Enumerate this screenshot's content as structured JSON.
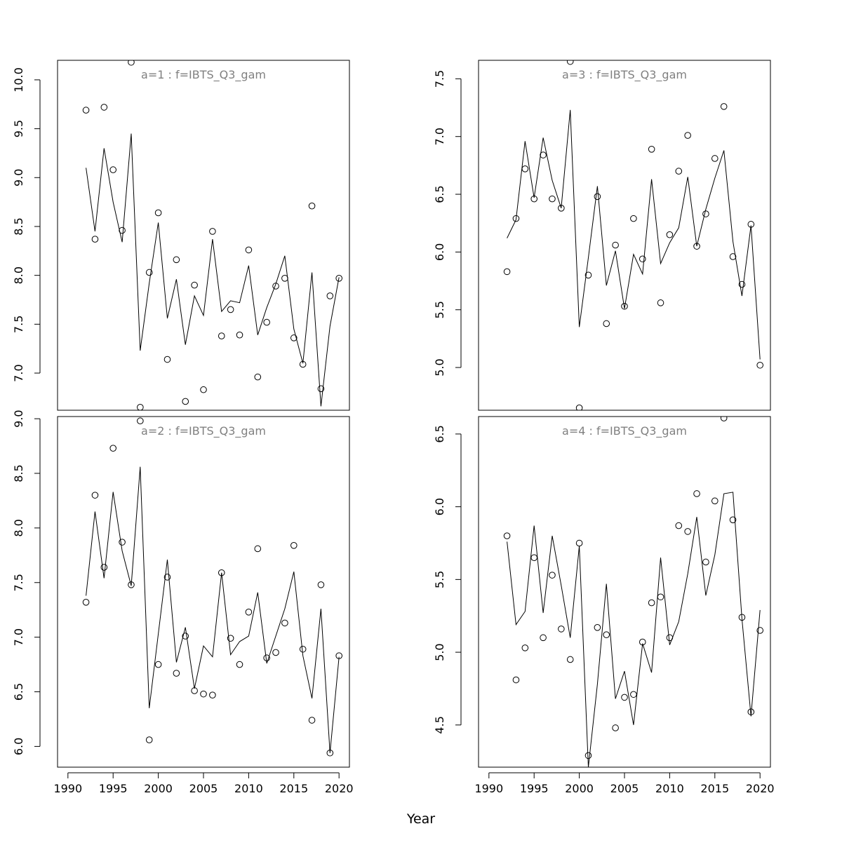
{
  "chart_data": {
    "type": "line",
    "xlabel": "Year",
    "x_ticks": [
      1990,
      1995,
      2000,
      2005,
      2010,
      2015,
      2020
    ],
    "x": [
      1992,
      1993,
      1994,
      1995,
      1996,
      1997,
      1998,
      1999,
      2000,
      2001,
      2002,
      2003,
      2004,
      2005,
      2006,
      2007,
      2008,
      2009,
      2010,
      2011,
      2012,
      2013,
      2014,
      2015,
      2016,
      2017,
      2018,
      2019,
      2020
    ],
    "panels": [
      {
        "title": "a=1  :  f=IBTS_Q3_gam",
        "ylim": [
          6.62,
          10.2
        ],
        "y_ticks": [
          7.0,
          7.5,
          8.0,
          8.5,
          9.0,
          9.5,
          10.0
        ],
        "series": [
          {
            "type": "points",
            "values": [
              9.69,
              8.37,
              9.72,
              9.08,
              8.46,
              10.18,
              6.65,
              8.03,
              8.64,
              7.14,
              8.16,
              6.71,
              7.9,
              6.83,
              8.45,
              7.38,
              7.65,
              7.39,
              8.26,
              6.96,
              7.52,
              7.89,
              7.97,
              7.36,
              7.09,
              8.71,
              6.84,
              7.79,
              7.97
            ]
          },
          {
            "type": "line",
            "values": [
              9.1,
              8.45,
              9.3,
              8.75,
              8.34,
              9.45,
              7.23,
              7.92,
              8.54,
              7.56,
              7.96,
              7.29,
              7.79,
              7.59,
              8.37,
              7.63,
              7.74,
              7.72,
              8.1,
              7.39,
              7.67,
              7.91,
              8.2,
              7.45,
              7.1,
              8.03,
              6.66,
              7.48,
              7.98
            ]
          }
        ]
      },
      {
        "title": "a=3  :  f=IBTS_Q3_gam",
        "ylim": [
          4.63,
          7.66
        ],
        "y_ticks": [
          5.0,
          5.5,
          6.0,
          6.5,
          7.0,
          7.5
        ],
        "series": [
          {
            "type": "points",
            "values": [
              5.83,
              6.29,
              6.72,
              6.46,
              6.84,
              6.46,
              6.38,
              7.65,
              4.65,
              5.8,
              6.48,
              5.38,
              6.06,
              5.53,
              6.29,
              5.94,
              6.89,
              5.56,
              6.15,
              6.7,
              7.01,
              6.05,
              6.33,
              6.81,
              7.26,
              5.96,
              5.72,
              6.24,
              5.02
            ]
          },
          {
            "type": "line",
            "values": [
              6.12,
              6.28,
              6.96,
              6.47,
              6.99,
              6.62,
              6.38,
              7.23,
              5.35,
              5.95,
              6.57,
              5.71,
              6.01,
              5.51,
              5.98,
              5.81,
              6.63,
              5.9,
              6.08,
              6.21,
              6.65,
              6.05,
              6.37,
              6.64,
              6.88,
              6.09,
              5.62,
              6.23,
              5.07
            ]
          }
        ]
      },
      {
        "title": "a=2  :  f=IBTS_Q3_gam",
        "ylim": [
          5.81,
          9.02
        ],
        "y_ticks": [
          6.0,
          6.5,
          7.0,
          7.5,
          8.0,
          8.5,
          9.0
        ],
        "series": [
          {
            "type": "points",
            "values": [
              7.32,
              8.3,
              7.64,
              8.73,
              7.87,
              7.48,
              8.98,
              6.06,
              6.75,
              7.55,
              6.67,
              7.01,
              6.51,
              6.48,
              6.47,
              7.59,
              6.99,
              6.75,
              7.23,
              7.81,
              6.81,
              6.86,
              7.13,
              7.84,
              6.89,
              6.24,
              7.48,
              5.94,
              6.83
            ]
          },
          {
            "type": "line",
            "values": [
              7.38,
              8.15,
              7.54,
              8.33,
              7.79,
              7.47,
              8.56,
              6.35,
              7.03,
              7.71,
              6.77,
              7.09,
              6.53,
              6.92,
              6.82,
              7.59,
              6.84,
              6.96,
              7.01,
              7.41,
              6.76,
              7.01,
              7.26,
              7.6,
              6.83,
              6.44,
              7.26,
              5.94,
              6.82
            ]
          }
        ]
      },
      {
        "title": "a=4  :  f=IBTS_Q3_gam",
        "ylim": [
          4.21,
          6.62
        ],
        "y_ticks": [
          4.5,
          5.0,
          5.5,
          6.0,
          6.5
        ],
        "series": [
          {
            "type": "points",
            "values": [
              5.8,
              4.81,
              5.03,
              5.65,
              5.1,
              5.53,
              5.16,
              4.95,
              5.75,
              4.29,
              5.17,
              5.12,
              4.48,
              4.69,
              4.71,
              5.07,
              5.34,
              5.38,
              5.1,
              5.87,
              5.83,
              6.09,
              5.62,
              6.04,
              6.61,
              5.91,
              5.24,
              4.59,
              5.15
            ]
          },
          {
            "type": "line",
            "values": [
              5.76,
              5.19,
              5.28,
              5.87,
              5.27,
              5.8,
              5.46,
              5.1,
              5.73,
              4.21,
              4.78,
              5.47,
              4.68,
              4.87,
              4.5,
              5.06,
              4.86,
              5.65,
              5.05,
              5.21,
              5.54,
              5.93,
              5.39,
              5.67,
              6.09,
              6.1,
              5.23,
              4.56,
              5.29
            ]
          }
        ]
      }
    ]
  }
}
